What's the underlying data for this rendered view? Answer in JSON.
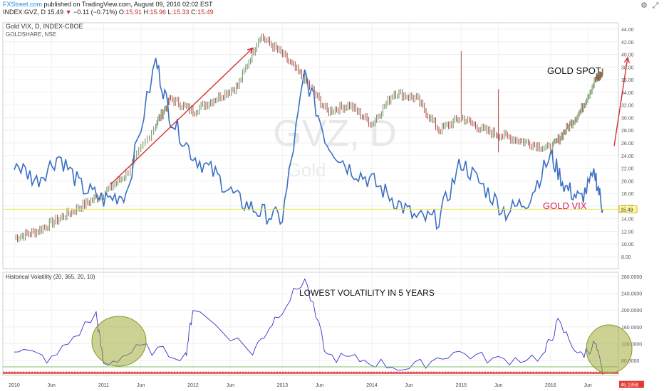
{
  "header": {
    "brand": "FXStreet.com",
    "published": " published on TradingView.com, August 09, 2016 02:02 EST",
    "symbol": "INDEX:GVZ, D",
    "last": "15.49",
    "change": "−0.11 (−0.71%)",
    "open_label": "O:",
    "open": "15.91",
    "high_label": "H:",
    "high": "15.96",
    "low_label": "L:",
    "low": "15.33",
    "close_label": "C:",
    "close": "15.49"
  },
  "icons": [
    "gear-icon",
    "fullscreen-icon"
  ],
  "watermark": {
    "main": "GVZ, D",
    "sub": "Gold"
  },
  "main_pane": {
    "title": "Gold VIX, D, INDEX-CBOE",
    "subtitle": "GOLDSHARE, NSE",
    "label_gold": "GOLD SPOT",
    "label_vix": "GOLD VIX",
    "price_tag": "15.49"
  },
  "lower_pane": {
    "title": "Historical Volatility (20, 365, 20, 10)",
    "annotation": "LOWEST VOLATILITY IN 5 YEARS",
    "value_tag": "46.1858"
  },
  "colors": {
    "vix": "#3a6fc4",
    "hv": "#3333cc",
    "arrow": "#d32f2f",
    "support": "#e53935",
    "circle": "#9aa62a",
    "gold_up": "#6a8e5a",
    "gold_down": "#b04848"
  },
  "chart_data": [
    {
      "type": "line",
      "title": "Gold VIX, D, INDEX-CBOE",
      "series": [
        {
          "name": "Gold VIX",
          "x": [
            "2010-01",
            "2010-04",
            "2010-07",
            "2010-10",
            "2011-01",
            "2011-04",
            "2011-08",
            "2011-10",
            "2012-01",
            "2012-04",
            "2012-07",
            "2012-10",
            "2013-01",
            "2013-04",
            "2013-07",
            "2013-10",
            "2014-01",
            "2014-04",
            "2014-07",
            "2014-10",
            "2015-01",
            "2015-04",
            "2015-07",
            "2015-10",
            "2016-01",
            "2016-03",
            "2016-05",
            "2016-07",
            "2016-08"
          ],
          "values": [
            23,
            20,
            24,
            19,
            17,
            18,
            39,
            30,
            24,
            21,
            17,
            15,
            14,
            37,
            26,
            22,
            20,
            17,
            14,
            14,
            23,
            19,
            15,
            17,
            24,
            19,
            17,
            21,
            15.49
          ]
        },
        {
          "name": "GOLDSHARE",
          "x": [
            "2010-01",
            "2010-04",
            "2010-07",
            "2010-10",
            "2011-01",
            "2011-04",
            "2011-08",
            "2011-10",
            "2012-01",
            "2012-04",
            "2012-07",
            "2012-10",
            "2013-01",
            "2013-04",
            "2013-07",
            "2013-10",
            "2014-01",
            "2014-04",
            "2014-07",
            "2014-10",
            "2015-01",
            "2015-04",
            "2015-07",
            "2015-10",
            "2016-01",
            "2016-03",
            "2016-05",
            "2016-07",
            "2016-08"
          ],
          "values": [
            11,
            12,
            14,
            16,
            18,
            21,
            29,
            33,
            31,
            33,
            35,
            43,
            40,
            36,
            31,
            32,
            29,
            34,
            33,
            28,
            30,
            28,
            27,
            26,
            25,
            28,
            31,
            36,
            37
          ]
        }
      ],
      "ylim": [
        6,
        44
      ],
      "yticks": [
        "44.00",
        "42.00",
        "40.00",
        "38.00",
        "36.00",
        "34.00",
        "32.00",
        "30.00",
        "28.00",
        "26.00",
        "24.00",
        "22.00",
        "20.00",
        "18.00",
        "16.00",
        "14.00",
        "12.00",
        "10.00",
        "8.00"
      ],
      "legend": "none",
      "grid": true
    },
    {
      "type": "line",
      "title": "Historical Volatility (20, 365, 20, 10)",
      "series": [
        {
          "name": "Historical Volatility",
          "x": [
            "2010-01",
            "2010-06",
            "2010-12",
            "2011-01",
            "2011-06",
            "2011-12",
            "2012-01",
            "2012-09",
            "2012-12",
            "2013-04",
            "2013-07",
            "2013-12",
            "2014-06",
            "2014-12",
            "2015-06",
            "2015-12",
            "2016-02",
            "2016-05",
            "2016-07",
            "2016-08"
          ],
          "values": [
            110,
            80,
            190,
            70,
            110,
            90,
            205,
            100,
            180,
            275,
            90,
            80,
            60,
            100,
            80,
            90,
            170,
            90,
            120,
            46.1858
          ]
        }
      ],
      "ylim": [
        40,
        290
      ],
      "yticks": [
        "280.0000",
        "240.0000",
        "200.0000",
        "160.0000",
        "120.0000",
        "80.0000"
      ],
      "support_level": 50,
      "xticks": [
        "2010",
        "Jun",
        "2011",
        "Jun",
        "2012",
        "Jun",
        "2013",
        "Jun",
        "2014",
        "Jun",
        "2015",
        "Jun",
        "2016",
        "Jun"
      ]
    }
  ]
}
